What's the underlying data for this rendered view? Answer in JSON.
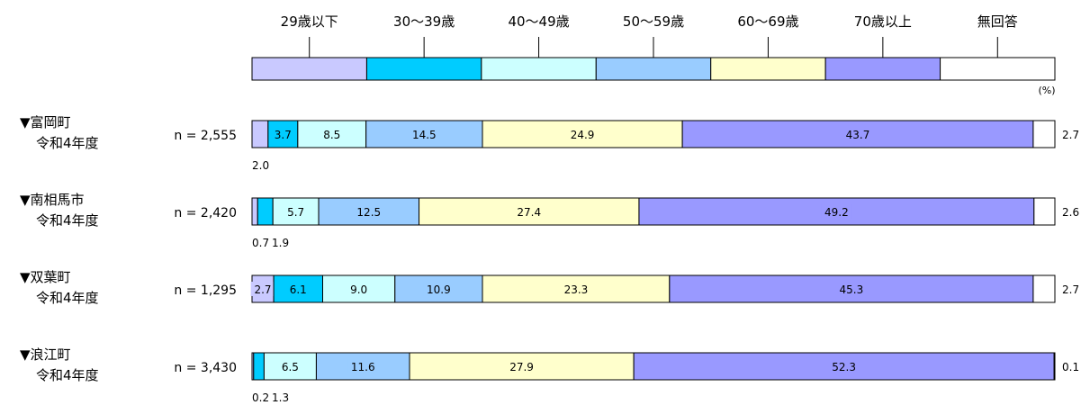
{
  "chart_data": {
    "type": "bar",
    "orientation": "horizontal",
    "stacked": "100%",
    "unit": "(%)",
    "legend_position": "top",
    "series": [
      {
        "name": "29歳以下",
        "color": "#c9c9ff"
      },
      {
        "name": "30～39歳",
        "color": "#00ccff"
      },
      {
        "name": "40～49歳",
        "color": "#ccffff"
      },
      {
        "name": "50～59歳",
        "color": "#99ccff"
      },
      {
        "name": "60～69歳",
        "color": "#ffffcc"
      },
      {
        "name": "70歳以上",
        "color": "#9999ff"
      },
      {
        "name": "無回答",
        "color": "#ffffff"
      }
    ],
    "rows": [
      {
        "label": "▼富岡町",
        "sublabel": "令和4年度",
        "n": "n = 2,555",
        "values": [
          2.0,
          3.7,
          8.5,
          14.5,
          24.9,
          43.7,
          2.7
        ],
        "value_labels": [
          "2.0",
          "3.7",
          "8.5",
          "14.5",
          "24.9",
          "43.7",
          "2.7"
        ]
      },
      {
        "label": "▼南相馬市",
        "sublabel": "令和4年度",
        "n": "n = 2,420",
        "values": [
          0.7,
          1.9,
          5.7,
          12.5,
          27.4,
          49.2,
          2.6
        ],
        "value_labels": [
          "0.7",
          "1.9",
          "5.7",
          "12.5",
          "27.4",
          "49.2",
          "2.6"
        ]
      },
      {
        "label": "▼双葉町",
        "sublabel": "令和4年度",
        "n": "n = 1,295",
        "values": [
          2.7,
          6.1,
          9.0,
          10.9,
          23.3,
          45.3,
          2.7
        ],
        "value_labels": [
          "2.7",
          "6.1",
          "9.0",
          "10.9",
          "23.3",
          "45.3",
          "2.7"
        ]
      },
      {
        "label": "▼浪江町",
        "sublabel": "令和4年度",
        "n": "n = 3,430",
        "values": [
          0.2,
          1.3,
          6.5,
          11.6,
          27.9,
          52.3,
          0.1
        ],
        "value_labels": [
          "0.2",
          "1.3",
          "6.5",
          "11.6",
          "27.9",
          "52.3",
          "0.1"
        ]
      }
    ]
  }
}
